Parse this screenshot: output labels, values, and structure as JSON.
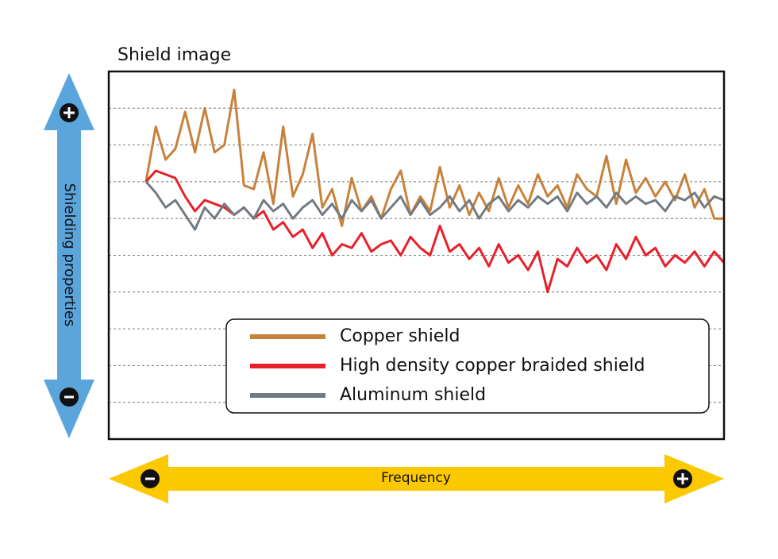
{
  "chart_data": {
    "type": "line",
    "title": "Shield image",
    "xlabel": "Frequency",
    "ylabel": "Shielding properties",
    "x": [
      0,
      1,
      2,
      3,
      4,
      5,
      6,
      7,
      8,
      9,
      10,
      11,
      12,
      13,
      14,
      15,
      16,
      17,
      18,
      19,
      20,
      21,
      22,
      23,
      24,
      25,
      26,
      27,
      28,
      29,
      30,
      31,
      32,
      33,
      34,
      35,
      36,
      37,
      38,
      39,
      40,
      41,
      42,
      43,
      44,
      45,
      46,
      47,
      48,
      49,
      50,
      51,
      52,
      53,
      54,
      55,
      56,
      57,
      58,
      59
    ],
    "xlim": [
      -3.8,
      59
    ],
    "ylim": [
      0,
      10
    ],
    "yticks": [
      1,
      2,
      3,
      4,
      5,
      6,
      7,
      8,
      9
    ],
    "grid": true,
    "legend": "lower-right",
    "series": [
      {
        "name": "Copper shield",
        "color": "#c8813a",
        "values": [
          7.0,
          8.5,
          7.6,
          7.9,
          8.9,
          7.8,
          9.0,
          7.8,
          8.0,
          9.5,
          6.9,
          6.8,
          7.8,
          6.4,
          8.5,
          6.6,
          7.2,
          8.3,
          6.3,
          6.8,
          5.8,
          7.1,
          6.2,
          6.6,
          6.0,
          6.8,
          7.3,
          6.1,
          6.6,
          6.2,
          7.4,
          6.3,
          6.9,
          6.1,
          6.7,
          6.2,
          7.1,
          6.3,
          6.9,
          6.4,
          7.2,
          6.6,
          6.9,
          6.3,
          7.2,
          6.8,
          6.6,
          7.7,
          6.4,
          7.6,
          6.7,
          7.1,
          6.6,
          7.0,
          6.5,
          7.2,
          6.3,
          6.8,
          6.0,
          6.0
        ]
      },
      {
        "name": "High density copper braided shield",
        "color": "#e8202a",
        "values": [
          7.0,
          7.3,
          7.2,
          7.1,
          6.6,
          6.2,
          6.5,
          6.4,
          6.3,
          6.1,
          6.3,
          6.0,
          6.2,
          5.7,
          5.9,
          5.5,
          5.7,
          5.2,
          5.6,
          5.0,
          5.3,
          5.2,
          5.6,
          5.1,
          5.3,
          5.4,
          5.0,
          5.5,
          5.2,
          5.0,
          5.8,
          5.1,
          5.3,
          4.9,
          5.2,
          4.7,
          5.3,
          4.8,
          5.0,
          4.6,
          5.1,
          4.0,
          4.9,
          4.7,
          5.2,
          4.8,
          5.0,
          4.6,
          5.3,
          4.9,
          5.5,
          5.0,
          5.2,
          4.7,
          5.0,
          4.8,
          5.1,
          4.7,
          5.1,
          4.8
        ]
      },
      {
        "name": "Aluminum shield",
        "color": "#737b82",
        "values": [
          7.0,
          6.7,
          6.3,
          6.5,
          6.1,
          5.7,
          6.3,
          6.0,
          6.4,
          6.1,
          6.3,
          6.0,
          6.5,
          6.2,
          6.4,
          6.0,
          6.3,
          6.5,
          6.1,
          6.4,
          6.0,
          6.5,
          6.2,
          6.5,
          6.0,
          6.3,
          6.6,
          6.1,
          6.5,
          6.1,
          6.3,
          6.6,
          6.2,
          6.5,
          6.0,
          6.4,
          6.6,
          6.2,
          6.5,
          6.3,
          6.6,
          6.4,
          6.6,
          6.2,
          6.7,
          6.4,
          6.6,
          6.3,
          6.7,
          6.4,
          6.6,
          6.4,
          6.5,
          6.2,
          6.6,
          6.5,
          6.7,
          6.3,
          6.6,
          6.5
        ]
      }
    ]
  }
}
